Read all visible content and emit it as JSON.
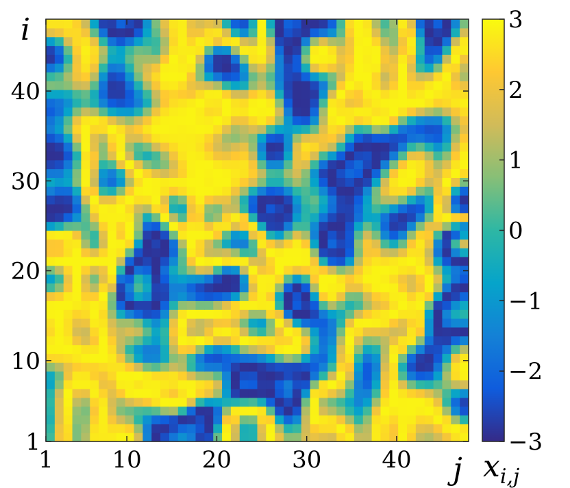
{
  "chart_data": {
    "type": "heatmap",
    "title": "",
    "xlabel": "j",
    "ylabel": "i",
    "colorbar_label": "x_{i,j}",
    "colorbar_label_main": "x",
    "colorbar_label_sub": "i,j",
    "colormap": "parula",
    "colormap_stops": [
      "#352a87",
      "#0f5cdd",
      "#1481d6",
      "#06a4ca",
      "#2eb7a4",
      "#87bf77",
      "#d1bb59",
      "#fec832",
      "#f9fb0e"
    ],
    "n_cols": 48,
    "n_rows": 48,
    "xlim": [
      1,
      48
    ],
    "ylim": [
      1,
      48
    ],
    "xticks": [
      1,
      10,
      20,
      30,
      40
    ],
    "xtick_labels": [
      "1",
      "10",
      "20",
      "30",
      "40"
    ],
    "yticks": [
      1,
      10,
      20,
      30,
      40
    ],
    "ytick_labels": [
      "1",
      "10",
      "20",
      "30",
      "40"
    ],
    "clim": [
      -3,
      3
    ],
    "cbar_ticks": [
      -3,
      -2,
      -1,
      0,
      1,
      2,
      3
    ],
    "cbar_tick_labels": [
      "−3",
      "−2",
      "−1",
      "0",
      "1",
      "2",
      "3"
    ],
    "grid": false,
    "values_note": "",
    "values": []
  }
}
